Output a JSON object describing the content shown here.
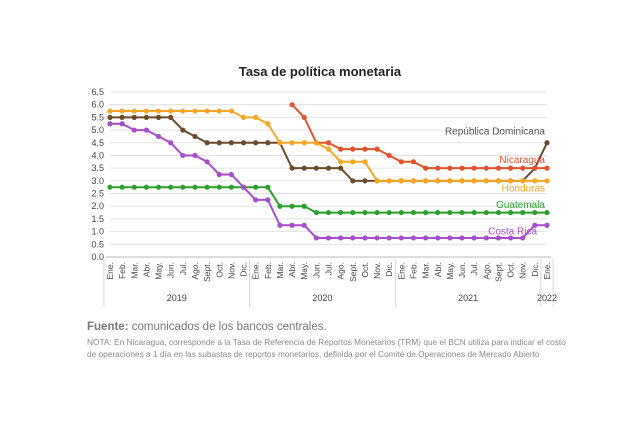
{
  "chart_data": {
    "type": "line",
    "title": "Tasa de política monetaria",
    "ylim": [
      0,
      6.5
    ],
    "yticks": [
      "0.0",
      "0.5",
      "1.0",
      "1.5",
      "2.0",
      "2.5",
      "3.0",
      "3.5",
      "4.0",
      "4.5",
      "5.0",
      "5.5",
      "6.0",
      "6.5"
    ],
    "grid": true,
    "x": [
      "Ene.",
      "Feb.",
      "Mar.",
      "Abr.",
      "May.",
      "Jun.",
      "Jul.",
      "Ago.",
      "Sept.",
      "Oct.",
      "Nov.",
      "Dic.",
      "Ene.",
      "Feb.",
      "Mar.",
      "Abr.",
      "May.",
      "Jun.",
      "Jul.",
      "Ago.",
      "Sept.",
      "Oct.",
      "Nov.",
      "Dic.",
      "Ene.",
      "Feb.",
      "Mar.",
      "Abr.",
      "May.",
      "Jun.",
      "Jul.",
      "Ago.",
      "Sept.",
      "Oct.",
      "Nov.",
      "Dic.",
      "Ene."
    ],
    "years": [
      "2019",
      "2020",
      "2021",
      "2022"
    ],
    "series": [
      {
        "name": "República Dominicana",
        "color": "#6b4c2a",
        "values": [
          5.5,
          5.5,
          5.5,
          5.5,
          5.5,
          5.5,
          5.0,
          4.75,
          4.5,
          4.5,
          4.5,
          4.5,
          4.5,
          4.5,
          4.5,
          3.5,
          3.5,
          3.5,
          3.5,
          3.5,
          3.0,
          3.0,
          3.0,
          3.0,
          3.0,
          3.0,
          3.0,
          3.0,
          3.0,
          3.0,
          3.0,
          3.0,
          3.0,
          3.0,
          3.0,
          3.5,
          4.5
        ]
      },
      {
        "name": "Nicaragua",
        "color": "#e0532a",
        "values": [
          null,
          null,
          null,
          null,
          null,
          null,
          null,
          null,
          null,
          null,
          null,
          null,
          null,
          null,
          null,
          6.0,
          5.5,
          4.5,
          4.5,
          4.25,
          4.25,
          4.25,
          4.25,
          4.0,
          3.75,
          3.75,
          3.5,
          3.5,
          3.5,
          3.5,
          3.5,
          3.5,
          3.5,
          3.5,
          3.5,
          3.5,
          3.5
        ]
      },
      {
        "name": "Honduras",
        "color": "#f5a623",
        "values": [
          5.75,
          5.75,
          5.75,
          5.75,
          5.75,
          5.75,
          5.75,
          5.75,
          5.75,
          5.75,
          5.75,
          5.5,
          5.5,
          5.25,
          4.5,
          4.5,
          4.5,
          4.5,
          4.25,
          3.75,
          3.75,
          3.75,
          3.0,
          3.0,
          3.0,
          3.0,
          3.0,
          3.0,
          3.0,
          3.0,
          3.0,
          3.0,
          3.0,
          3.0,
          3.0,
          3.0,
          3.0
        ]
      },
      {
        "name": "Guatemala",
        "color": "#2aa02a",
        "values": [
          2.75,
          2.75,
          2.75,
          2.75,
          2.75,
          2.75,
          2.75,
          2.75,
          2.75,
          2.75,
          2.75,
          2.75,
          2.75,
          2.75,
          2.0,
          2.0,
          2.0,
          1.75,
          1.75,
          1.75,
          1.75,
          1.75,
          1.75,
          1.75,
          1.75,
          1.75,
          1.75,
          1.75,
          1.75,
          1.75,
          1.75,
          1.75,
          1.75,
          1.75,
          1.75,
          1.75,
          1.75
        ]
      },
      {
        "name": "Costa Rica",
        "color": "#a64ec9",
        "values": [
          5.25,
          5.25,
          5.0,
          5.0,
          4.75,
          4.5,
          4.0,
          4.0,
          3.75,
          3.25,
          3.25,
          2.75,
          2.25,
          2.25,
          1.25,
          1.25,
          1.25,
          0.75,
          0.75,
          0.75,
          0.75,
          0.75,
          0.75,
          0.75,
          0.75,
          0.75,
          0.75,
          0.75,
          0.75,
          0.75,
          0.75,
          0.75,
          0.75,
          0.75,
          0.75,
          1.25,
          1.25
        ]
      }
    ]
  },
  "footer": {
    "source_label": "Fuente:",
    "source_text": " comunicados de los bancos centrales.",
    "note": "NOTA: En Nicaragua, corresponde a la Tasa de Referencia de Reportos Monetarios (TRM) que el BCN utiliza para indicar el costo de operaciones a 1 día en las subastas de reportos monetarios, definida por el Comité de Operaciones de Mercado Abierto"
  }
}
